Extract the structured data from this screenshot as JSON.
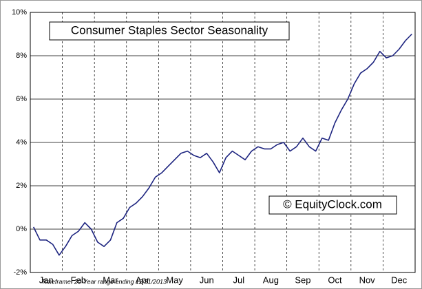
{
  "chart_data": {
    "type": "line",
    "title": "Consumer Staples Sector Seasonality",
    "watermark": "© EquityClock.com",
    "footnote": "Timeframe: 20-Year range ending 12/31/2013",
    "categories": [
      null,
      null,
      "Jan",
      null,
      null,
      null,
      null,
      "Feb",
      null,
      null,
      null,
      null,
      "Mar",
      null,
      null,
      null,
      null,
      "Apr",
      null,
      null,
      null,
      null,
      "May",
      null,
      null,
      null,
      null,
      "Jun",
      null,
      null,
      null,
      null,
      "Jul",
      null,
      null,
      null,
      null,
      "Aug",
      null,
      null,
      null,
      null,
      "Sep",
      null,
      null,
      null,
      null,
      "Oct",
      null,
      null,
      null,
      null,
      "Nov",
      null,
      null,
      null,
      null,
      "Dec",
      null,
      null
    ],
    "series": [
      {
        "name": "Consumer Staples",
        "color": "#1c237f",
        "values": [
          0.1,
          -0.5,
          -0.5,
          -0.7,
          -1.2,
          -0.8,
          -0.3,
          -0.1,
          0.3,
          0.0,
          -0.6,
          -0.8,
          -0.5,
          0.3,
          0.5,
          1.0,
          1.2,
          1.5,
          1.9,
          2.4,
          2.6,
          2.9,
          3.2,
          3.5,
          3.6,
          3.4,
          3.3,
          3.5,
          3.1,
          2.6,
          3.3,
          3.6,
          3.4,
          3.2,
          3.6,
          3.8,
          3.7,
          3.7,
          3.9,
          4.0,
          3.6,
          3.8,
          4.2,
          3.8,
          3.6,
          4.2,
          4.1,
          4.9,
          5.5,
          6.0,
          6.7,
          7.2,
          7.4,
          7.7,
          8.2,
          7.9,
          8.0,
          8.3,
          8.7,
          9.0
        ]
      }
    ],
    "ylim": [
      -2,
      10
    ],
    "yticks": [
      {
        "value": -2,
        "label": "-2%"
      },
      {
        "value": 0,
        "label": "0%"
      },
      {
        "value": 2,
        "label": "2%"
      },
      {
        "value": 4,
        "label": "4%"
      },
      {
        "value": 6,
        "label": "6%"
      },
      {
        "value": 8,
        "label": "8%"
      },
      {
        "value": 10,
        "label": "10%"
      }
    ],
    "grid": true
  }
}
